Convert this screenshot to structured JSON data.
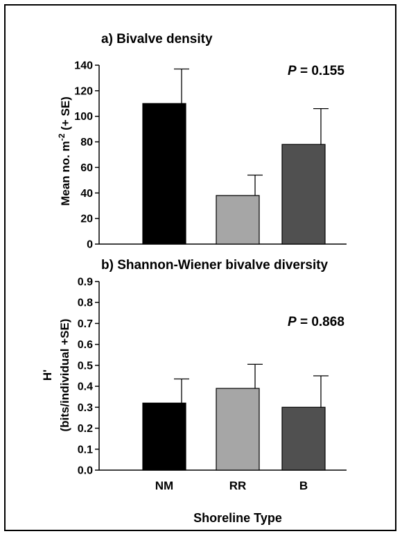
{
  "chart_data": [
    {
      "type": "bar",
      "title": "a) Bivalve density",
      "ylabel": {
        "main": "Mean no. m",
        "sup": "-2",
        "tail": " (+ SE)"
      },
      "ylim": [
        0,
        140
      ],
      "yticks": [
        0,
        20,
        40,
        60,
        80,
        100,
        120,
        140
      ],
      "ytick_labels": [
        "0",
        "20",
        "40",
        "60",
        "80",
        "100",
        "120",
        "140"
      ],
      "categories": [
        "NM",
        "RR",
        "B"
      ],
      "values": [
        110,
        38,
        78
      ],
      "errors": [
        27,
        16,
        28
      ],
      "bar_colors": [
        "#000000",
        "#a6a6a6",
        "#505050"
      ],
      "annotation": {
        "italic": "P",
        "rest": " = 0.155"
      }
    },
    {
      "type": "bar",
      "title": "b) Shannon-Wiener bivalve diversity",
      "ylabel_lines": [
        "H'",
        "(bits/individual +SE)"
      ],
      "ylim": [
        0,
        0.9
      ],
      "yticks": [
        0,
        0.1,
        0.2,
        0.3,
        0.4,
        0.5,
        0.6,
        0.7,
        0.8,
        0.9
      ],
      "ytick_labels": [
        "0.0",
        "0.1",
        "0.2",
        "0.3",
        "0.4",
        "0.5",
        "0.6",
        "0.7",
        "0.8",
        "0.9"
      ],
      "categories": [
        "NM",
        "RR",
        "B"
      ],
      "values": [
        0.32,
        0.39,
        0.3
      ],
      "errors": [
        0.115,
        0.115,
        0.15
      ],
      "bar_colors": [
        "#000000",
        "#a6a6a6",
        "#505050"
      ],
      "annotation": {
        "italic": "P",
        "rest": " = 0.868"
      },
      "xlabel": "Shoreline Type"
    }
  ]
}
